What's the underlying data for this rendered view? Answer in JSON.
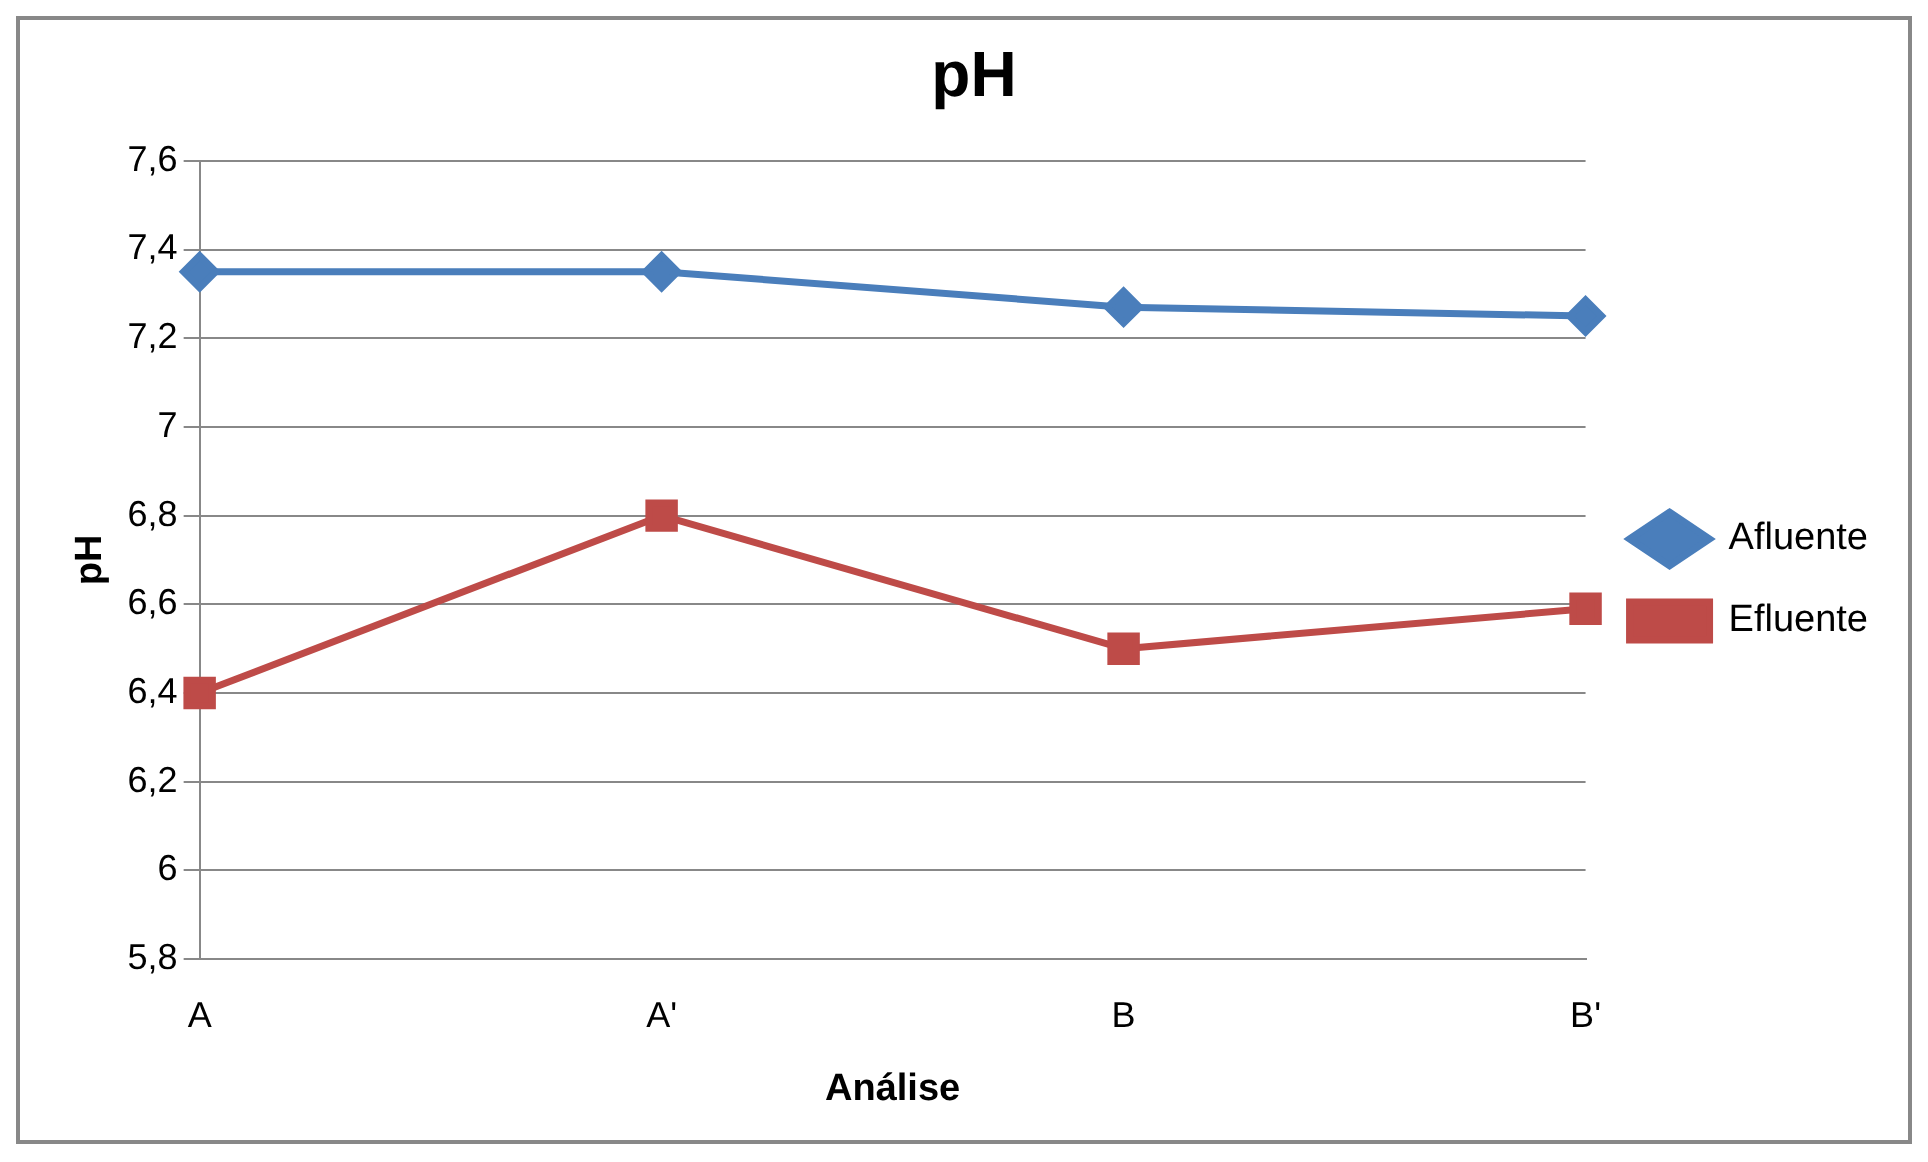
{
  "chart_data": {
    "type": "line",
    "title": "pH",
    "xlabel": "Análise",
    "ylabel": "pH",
    "categories": [
      "A",
      "A'",
      "B",
      "B'"
    ],
    "series": [
      {
        "name": "Afluente",
        "color": "#4a7ebb",
        "marker": "diamond",
        "values": [
          7.35,
          7.35,
          7.27,
          7.25
        ]
      },
      {
        "name": "Efluente",
        "color": "#be4b48",
        "marker": "square",
        "values": [
          6.4,
          6.8,
          6.5,
          6.59
        ]
      }
    ],
    "ylim": [
      5.8,
      7.6
    ],
    "yticks": [
      {
        "value": 5.8,
        "label": "5,8"
      },
      6,
      {
        "value": 6.2,
        "label": "6,2"
      },
      {
        "value": 6.4,
        "label": "6,4"
      },
      {
        "value": 6.6,
        "label": "6,6"
      },
      {
        "value": 6.8,
        "label": "6,8"
      },
      7,
      {
        "value": 7.2,
        "label": "7,2"
      },
      {
        "value": 7.4,
        "label": "7,4"
      },
      {
        "value": 7.6,
        "label": "7,6"
      }
    ],
    "grid": "y",
    "legend": "right",
    "line_style": "solid"
  }
}
